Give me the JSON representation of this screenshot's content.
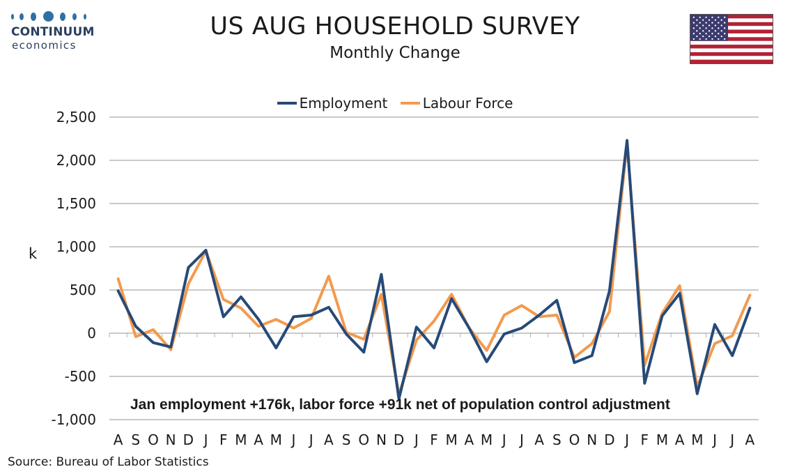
{
  "brand": {
    "name": "CONTINUUM",
    "sub": "economics"
  },
  "header": {
    "title": "US AUG HOUSEHOLD SURVEY",
    "subtitle": "Monthly Change"
  },
  "footer": {
    "source": "Source: Bureau of Labor Statistics"
  },
  "colors": {
    "employment": "#264a78",
    "labour_force": "#f39a4e",
    "grid": "#c9c9c9"
  },
  "chart_data": {
    "type": "line",
    "ylabel": "k",
    "ylim": [
      -1000,
      2500
    ],
    "yticks": [
      -1000,
      -500,
      0,
      500,
      1000,
      1500,
      2000,
      2500
    ],
    "ytick_labels": [
      "-1,000",
      "-500",
      "0",
      "500",
      "1,000",
      "1,500",
      "2,000",
      "2,500"
    ],
    "grid": true,
    "legend_position": "top",
    "annotation": "Jan employment +176k,  labor force +91k net of population control adjustment",
    "categories": [
      "A",
      "S",
      "O",
      "N",
      "D",
      "J",
      "F",
      "M",
      "A",
      "M",
      "J",
      "J",
      "A",
      "S",
      "O",
      "N",
      "D",
      "J",
      "F",
      "M",
      "A",
      "M",
      "J",
      "J",
      "A",
      "S",
      "O",
      "N",
      "D",
      "J",
      "F",
      "M",
      "A",
      "M",
      "J",
      "J",
      "A"
    ],
    "series": [
      {
        "name": "Employment",
        "values": [
          490,
          80,
          -110,
          -160,
          760,
          960,
          190,
          420,
          160,
          -170,
          190,
          210,
          300,
          -10,
          -220,
          680,
          -760,
          70,
          -170,
          400,
          60,
          -330,
          -10,
          60,
          210,
          380,
          -340,
          -260,
          490,
          2230,
          -580,
          200,
          460,
          -700,
          100,
          -260,
          290
        ]
      },
      {
        "name": "Labour Force",
        "values": [
          630,
          -40,
          40,
          -190,
          570,
          950,
          390,
          290,
          80,
          160,
          60,
          170,
          660,
          10,
          -70,
          450,
          -710,
          -80,
          140,
          450,
          60,
          -200,
          210,
          320,
          190,
          210,
          -280,
          -120,
          250,
          2200,
          -370,
          230,
          550,
          -620,
          -120,
          -30,
          440
        ]
      }
    ]
  }
}
